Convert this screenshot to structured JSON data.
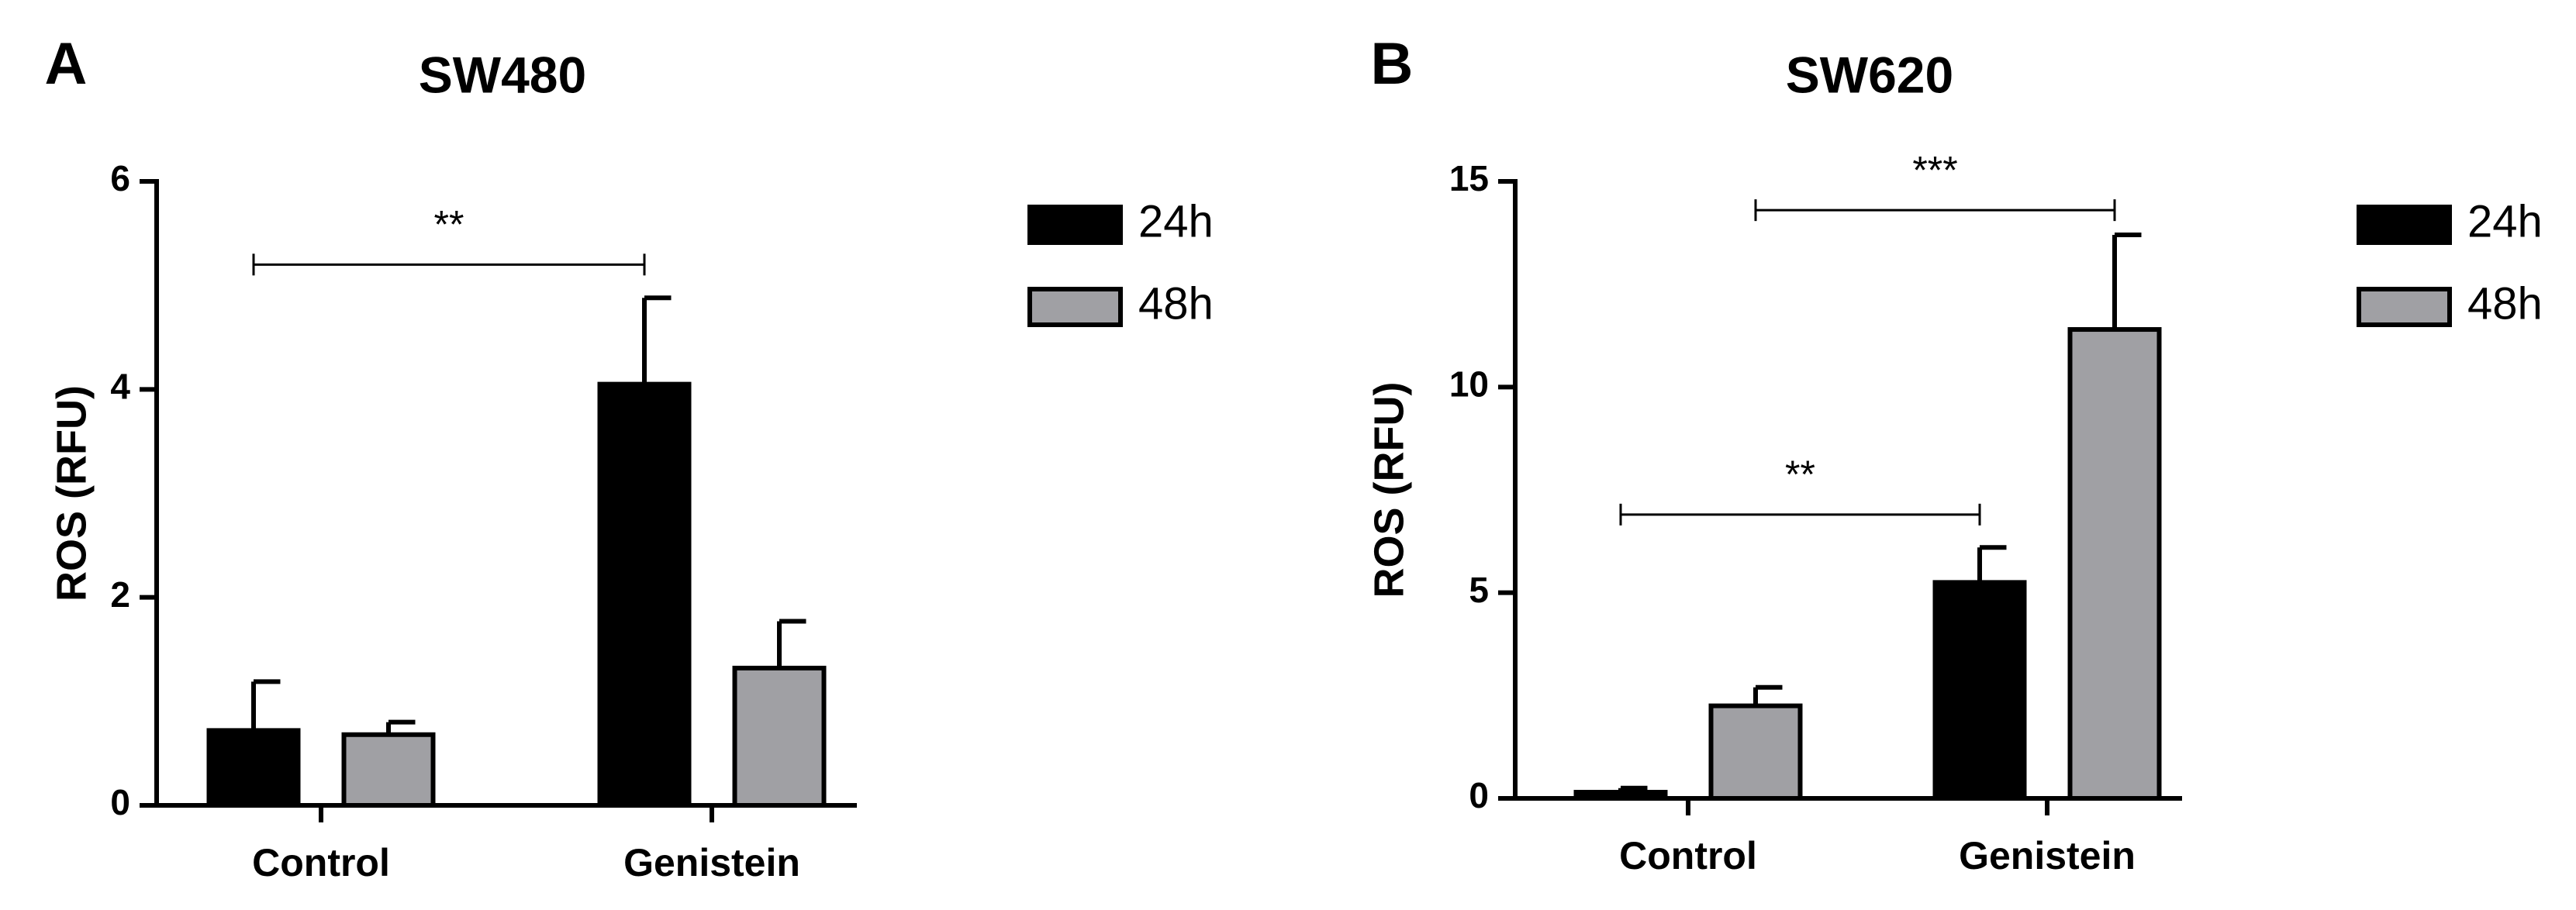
{
  "chart_data": [
    {
      "type": "bar",
      "panel": "A",
      "title": "SW480",
      "ylabel": "ROS (RFU)",
      "categories": [
        "Control",
        "Genistein"
      ],
      "series": [
        {
          "name": "24h",
          "color": "#000000",
          "values": [
            0.72,
            4.05
          ],
          "errors": [
            0.47,
            0.83
          ]
        },
        {
          "name": "48h",
          "color": "#a0a0a4",
          "values": [
            0.68,
            1.32
          ],
          "errors": [
            0.12,
            0.45
          ]
        }
      ],
      "ylim": [
        0,
        6
      ],
      "yticks": [
        0,
        2,
        4,
        6
      ],
      "annotations": [
        {
          "label": "**",
          "y": 5.2,
          "series": "24h",
          "between": [
            "Control",
            "Genistein"
          ]
        }
      ]
    },
    {
      "type": "bar",
      "panel": "B",
      "title": "SW620",
      "ylabel": "ROS (RFU)",
      "categories": [
        "Control",
        "Genistein"
      ],
      "series": [
        {
          "name": "24h",
          "color": "#000000",
          "values": [
            0.15,
            5.25
          ],
          "errors": [
            0.1,
            0.85
          ]
        },
        {
          "name": "48h",
          "color": "#a0a0a4",
          "values": [
            2.25,
            11.4
          ],
          "errors": [
            0.45,
            2.3
          ]
        }
      ],
      "ylim": [
        0,
        15
      ],
      "yticks": [
        0,
        5,
        10,
        15
      ],
      "annotations": [
        {
          "label": "**",
          "y": 6.9,
          "series": "24h",
          "between": [
            "Control",
            "Genistein"
          ]
        },
        {
          "label": "***",
          "y": 14.3,
          "series": "48h",
          "between": [
            "Control",
            "Genistein"
          ]
        }
      ]
    }
  ]
}
